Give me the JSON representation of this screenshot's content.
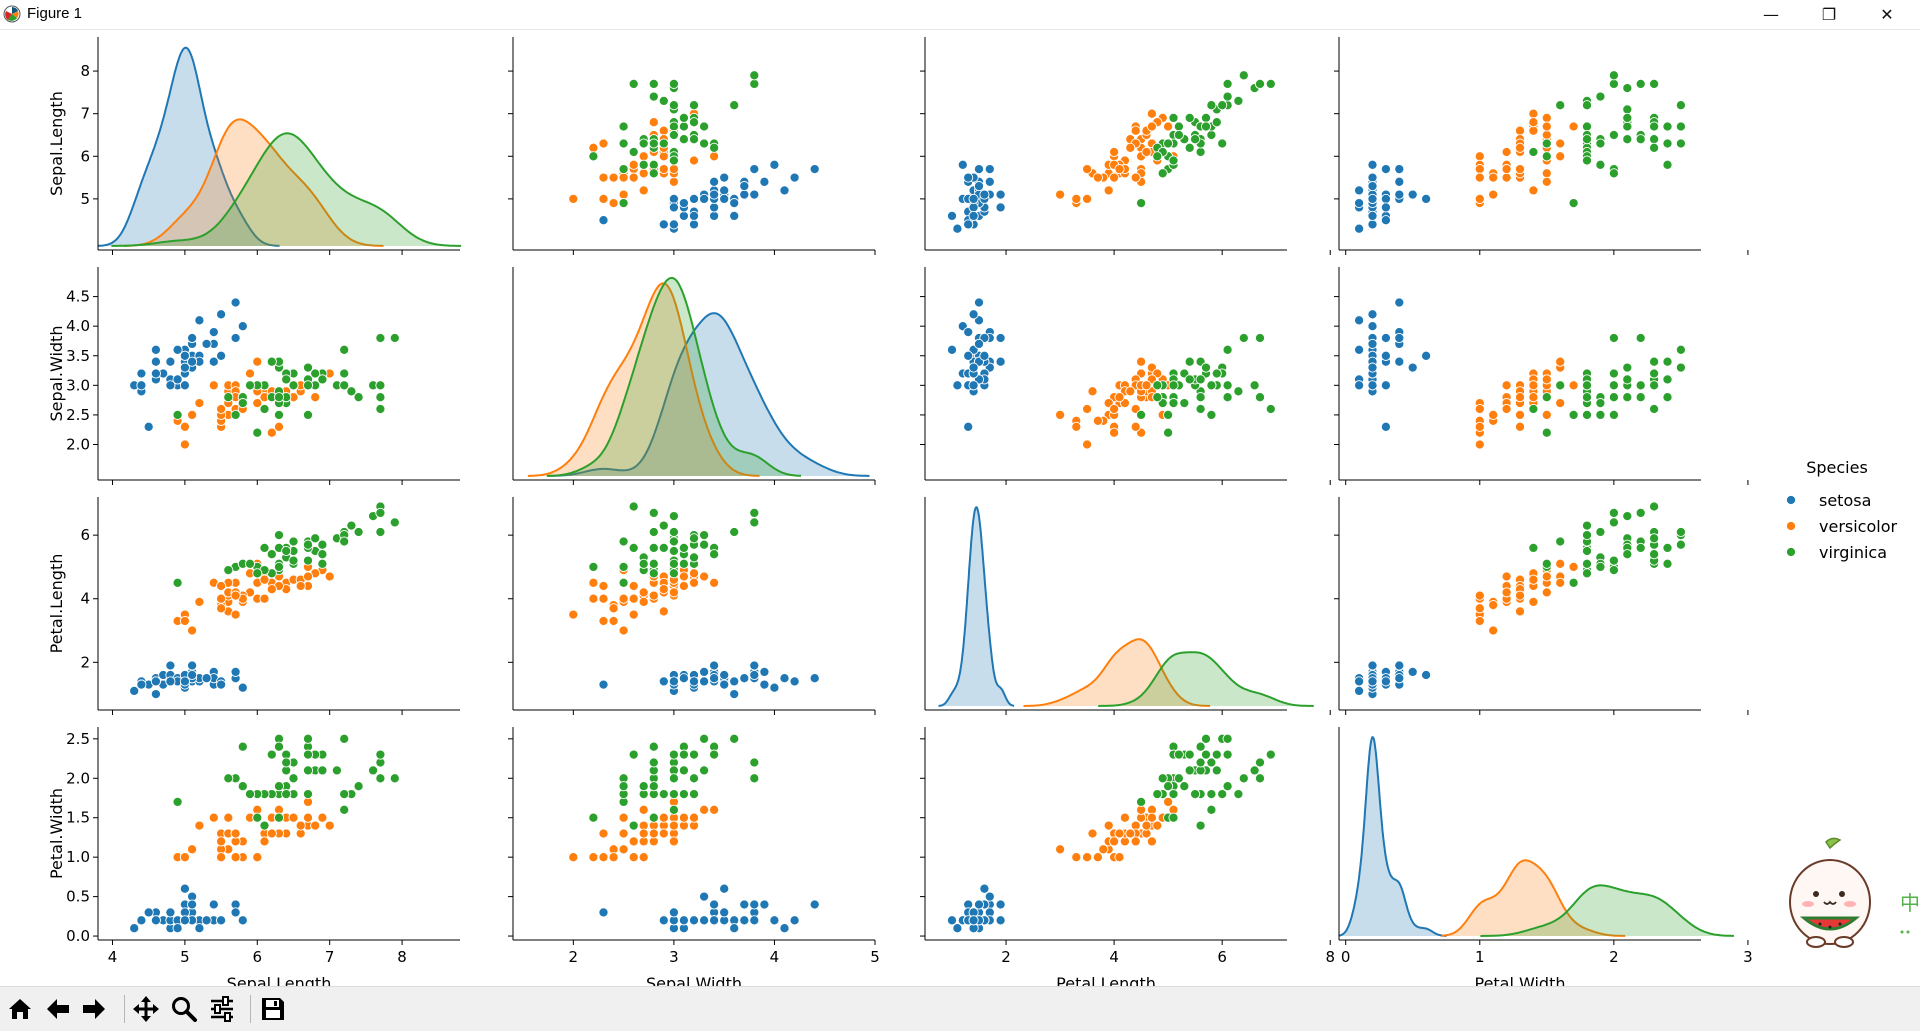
{
  "window": {
    "title": "Figure 1",
    "minimize_label": "—",
    "restore_label": "❐",
    "close_label": "✕"
  },
  "toolbar": {
    "buttons": [
      {
        "name": "home-button",
        "icon": "home-icon"
      },
      {
        "name": "back-button",
        "icon": "arrow-left-icon"
      },
      {
        "name": "forward-button",
        "icon": "arrow-right-icon"
      },
      {
        "name": "pan-button",
        "icon": "move-icon"
      },
      {
        "name": "zoom-button",
        "icon": "magnifier-icon"
      },
      {
        "name": "configure-subplots-button",
        "icon": "sliders-icon"
      },
      {
        "name": "save-button",
        "icon": "floppy-disk-icon"
      }
    ]
  },
  "overlay": {
    "edge_glyph": "中",
    "edge_glyph_color": "#55b24a"
  },
  "chart_data": {
    "type": "scatter",
    "title": "",
    "kind": "pairplot",
    "variables": [
      "Sepal.Length",
      "Sepal.Width",
      "Petal.Length",
      "Petal.Width"
    ],
    "axis_ranges": {
      "Sepal.Length": [
        3.8,
        8.8
      ],
      "Sepal.Width": [
        1.4,
        5.0
      ],
      "Petal.Length": [
        0.5,
        7.2
      ],
      "Petal.Width": [
        -0.05,
        2.65
      ]
    },
    "ticks": {
      "Sepal.Length": [
        "5",
        "6",
        "7",
        "8"
      ],
      "Sepal.Width": [
        "2.0",
        "2.5",
        "3.0",
        "3.5",
        "4.0",
        "4.5"
      ],
      "Petal.Length": [
        "2",
        "4",
        "6"
      ],
      "Petal.Width": [
        "0.0",
        "0.5",
        "1.0",
        "1.5",
        "2.0",
        "2.5"
      ]
    },
    "xticks_bottom": {
      "Sepal.Length": [
        "4",
        "5",
        "6",
        "7",
        "8"
      ],
      "Sepal.Width": [
        "2",
        "3",
        "4",
        "5"
      ],
      "Petal.Length": [
        "2",
        "4",
        "6",
        "8"
      ],
      "Petal.Width": [
        "0",
        "1",
        "2",
        "3"
      ]
    },
    "legend": {
      "title": "Species",
      "position": "right",
      "entries": [
        "setosa",
        "versicolor",
        "virginica"
      ]
    },
    "series": [
      {
        "name": "setosa",
        "color": "#1f77b4",
        "centers": [
          5.0,
          3.4,
          1.46,
          0.25
        ],
        "spread": [
          0.35,
          0.38,
          0.17,
          0.1
        ],
        "points": [
          [
            5.1,
            3.5,
            1.4,
            0.2
          ],
          [
            4.9,
            3.0,
            1.4,
            0.2
          ],
          [
            4.7,
            3.2,
            1.3,
            0.2
          ],
          [
            4.6,
            3.1,
            1.5,
            0.2
          ],
          [
            5.0,
            3.6,
            1.4,
            0.2
          ],
          [
            5.4,
            3.9,
            1.7,
            0.4
          ],
          [
            4.6,
            3.4,
            1.4,
            0.3
          ],
          [
            5.0,
            3.4,
            1.5,
            0.2
          ],
          [
            4.4,
            2.9,
            1.4,
            0.2
          ],
          [
            4.9,
            3.1,
            1.5,
            0.1
          ],
          [
            5.4,
            3.7,
            1.5,
            0.2
          ],
          [
            4.8,
            3.4,
            1.6,
            0.2
          ],
          [
            4.8,
            3.0,
            1.4,
            0.1
          ],
          [
            4.3,
            3.0,
            1.1,
            0.1
          ],
          [
            5.8,
            4.0,
            1.2,
            0.2
          ],
          [
            5.7,
            4.4,
            1.5,
            0.4
          ],
          [
            5.4,
            3.9,
            1.3,
            0.4
          ],
          [
            5.1,
            3.5,
            1.4,
            0.3
          ],
          [
            5.7,
            3.8,
            1.7,
            0.3
          ],
          [
            5.1,
            3.8,
            1.5,
            0.3
          ],
          [
            5.4,
            3.4,
            1.7,
            0.2
          ],
          [
            5.1,
            3.7,
            1.5,
            0.4
          ],
          [
            4.6,
            3.6,
            1.0,
            0.2
          ],
          [
            5.1,
            3.3,
            1.7,
            0.5
          ],
          [
            4.8,
            3.4,
            1.9,
            0.2
          ],
          [
            5.0,
            3.0,
            1.6,
            0.2
          ],
          [
            5.0,
            3.4,
            1.6,
            0.4
          ],
          [
            5.2,
            3.5,
            1.5,
            0.2
          ],
          [
            5.2,
            3.4,
            1.4,
            0.2
          ],
          [
            4.7,
            3.2,
            1.6,
            0.2
          ],
          [
            4.8,
            3.1,
            1.6,
            0.2
          ],
          [
            5.4,
            3.4,
            1.5,
            0.4
          ],
          [
            5.2,
            4.1,
            1.5,
            0.1
          ],
          [
            5.5,
            4.2,
            1.4,
            0.2
          ],
          [
            4.9,
            3.1,
            1.5,
            0.2
          ],
          [
            5.0,
            3.2,
            1.2,
            0.2
          ],
          [
            5.5,
            3.5,
            1.3,
            0.2
          ],
          [
            4.9,
            3.6,
            1.4,
            0.1
          ],
          [
            4.4,
            3.0,
            1.3,
            0.2
          ],
          [
            5.1,
            3.4,
            1.5,
            0.2
          ],
          [
            5.0,
            3.5,
            1.3,
            0.3
          ],
          [
            4.5,
            2.3,
            1.3,
            0.3
          ],
          [
            4.4,
            3.2,
            1.3,
            0.2
          ],
          [
            5.0,
            3.5,
            1.6,
            0.6
          ],
          [
            5.1,
            3.8,
            1.9,
            0.4
          ],
          [
            4.8,
            3.0,
            1.4,
            0.3
          ],
          [
            5.1,
            3.8,
            1.6,
            0.2
          ],
          [
            4.6,
            3.2,
            1.4,
            0.2
          ],
          [
            5.3,
            3.7,
            1.5,
            0.2
          ],
          [
            5.0,
            3.3,
            1.4,
            0.2
          ]
        ]
      },
      {
        "name": "versicolor",
        "color": "#ff7f0e",
        "centers": [
          5.94,
          2.77,
          4.26,
          1.33
        ],
        "spread": [
          0.5,
          0.31,
          0.47,
          0.2
        ],
        "points": [
          [
            7.0,
            3.2,
            4.7,
            1.4
          ],
          [
            6.4,
            3.2,
            4.5,
            1.5
          ],
          [
            6.9,
            3.1,
            4.9,
            1.5
          ],
          [
            5.5,
            2.3,
            4.0,
            1.3
          ],
          [
            6.5,
            2.8,
            4.6,
            1.5
          ],
          [
            5.7,
            2.8,
            4.5,
            1.3
          ],
          [
            6.3,
            3.3,
            4.7,
            1.6
          ],
          [
            4.9,
            2.4,
            3.3,
            1.0
          ],
          [
            6.6,
            2.9,
            4.6,
            1.3
          ],
          [
            5.2,
            2.7,
            3.9,
            1.4
          ],
          [
            5.0,
            2.0,
            3.5,
            1.0
          ],
          [
            5.9,
            3.0,
            4.2,
            1.5
          ],
          [
            6.0,
            2.2,
            4.0,
            1.0
          ],
          [
            6.1,
            2.9,
            4.7,
            1.4
          ],
          [
            5.6,
            2.9,
            3.6,
            1.3
          ],
          [
            6.7,
            3.1,
            4.4,
            1.4
          ],
          [
            5.6,
            3.0,
            4.5,
            1.5
          ],
          [
            5.8,
            2.7,
            4.1,
            1.0
          ],
          [
            6.2,
            2.2,
            4.5,
            1.5
          ],
          [
            5.6,
            2.5,
            3.9,
            1.1
          ],
          [
            5.9,
            3.2,
            4.8,
            1.8
          ],
          [
            6.1,
            2.8,
            4.0,
            1.3
          ],
          [
            6.3,
            2.5,
            4.9,
            1.5
          ],
          [
            6.1,
            2.8,
            4.7,
            1.2
          ],
          [
            6.4,
            2.9,
            4.3,
            1.3
          ],
          [
            6.6,
            3.0,
            4.4,
            1.4
          ],
          [
            6.8,
            2.8,
            4.8,
            1.4
          ],
          [
            6.7,
            3.0,
            5.0,
            1.7
          ],
          [
            6.0,
            2.9,
            4.5,
            1.5
          ],
          [
            5.7,
            2.6,
            3.5,
            1.0
          ],
          [
            5.5,
            2.4,
            3.8,
            1.1
          ],
          [
            5.5,
            2.4,
            3.7,
            1.0
          ],
          [
            5.8,
            2.7,
            3.9,
            1.2
          ],
          [
            6.0,
            2.7,
            5.1,
            1.6
          ],
          [
            5.4,
            3.0,
            4.5,
            1.5
          ],
          [
            6.0,
            3.4,
            4.5,
            1.6
          ],
          [
            6.7,
            3.1,
            4.7,
            1.5
          ],
          [
            6.3,
            2.3,
            4.4,
            1.3
          ],
          [
            5.6,
            3.0,
            4.1,
            1.3
          ],
          [
            5.5,
            2.5,
            4.0,
            1.3
          ],
          [
            5.5,
            2.6,
            4.4,
            1.2
          ],
          [
            6.1,
            3.0,
            4.6,
            1.4
          ],
          [
            5.8,
            2.6,
            4.0,
            1.2
          ],
          [
            5.0,
            2.3,
            3.3,
            1.0
          ],
          [
            5.6,
            2.7,
            4.2,
            1.3
          ],
          [
            5.7,
            3.0,
            4.2,
            1.2
          ],
          [
            5.7,
            2.9,
            4.2,
            1.3
          ],
          [
            6.2,
            2.9,
            4.3,
            1.3
          ],
          [
            5.1,
            2.5,
            3.0,
            1.1
          ],
          [
            5.7,
            2.8,
            4.1,
            1.3
          ]
        ]
      },
      {
        "name": "virginica",
        "color": "#2ca02c",
        "centers": [
          6.59,
          2.97,
          5.55,
          2.03
        ],
        "spread": [
          0.63,
          0.32,
          0.55,
          0.27
        ],
        "points": [
          [
            6.3,
            3.3,
            6.0,
            2.5
          ],
          [
            5.8,
            2.7,
            5.1,
            1.9
          ],
          [
            7.1,
            3.0,
            5.9,
            2.1
          ],
          [
            6.3,
            2.9,
            5.6,
            1.8
          ],
          [
            6.5,
            3.0,
            5.8,
            2.2
          ],
          [
            7.6,
            3.0,
            6.6,
            2.1
          ],
          [
            4.9,
            2.5,
            4.5,
            1.7
          ],
          [
            7.3,
            2.9,
            6.3,
            1.8
          ],
          [
            6.7,
            2.5,
            5.8,
            1.8
          ],
          [
            7.2,
            3.6,
            6.1,
            2.5
          ],
          [
            6.5,
            3.2,
            5.1,
            2.0
          ],
          [
            6.4,
            2.7,
            5.3,
            1.9
          ],
          [
            6.8,
            3.0,
            5.5,
            2.1
          ],
          [
            5.7,
            2.5,
            5.0,
            2.0
          ],
          [
            5.8,
            2.8,
            5.1,
            2.4
          ],
          [
            6.4,
            3.2,
            5.3,
            2.3
          ],
          [
            6.5,
            3.0,
            5.5,
            1.8
          ],
          [
            7.7,
            3.8,
            6.7,
            2.2
          ],
          [
            7.7,
            2.6,
            6.9,
            2.3
          ],
          [
            6.0,
            2.2,
            5.0,
            1.5
          ],
          [
            6.9,
            3.2,
            5.7,
            2.3
          ],
          [
            5.6,
            2.8,
            4.9,
            2.0
          ],
          [
            7.7,
            2.8,
            6.7,
            2.0
          ],
          [
            6.3,
            2.7,
            4.9,
            1.8
          ],
          [
            6.7,
            3.3,
            5.7,
            2.1
          ],
          [
            7.2,
            3.2,
            6.0,
            1.8
          ],
          [
            6.2,
            2.8,
            4.8,
            1.8
          ],
          [
            6.1,
            3.0,
            4.9,
            1.8
          ],
          [
            6.4,
            2.8,
            5.6,
            2.1
          ],
          [
            7.2,
            3.0,
            5.8,
            1.6
          ],
          [
            7.4,
            2.8,
            6.1,
            1.9
          ],
          [
            7.9,
            3.8,
            6.4,
            2.0
          ],
          [
            6.4,
            2.8,
            5.6,
            2.2
          ],
          [
            6.3,
            2.8,
            5.1,
            1.5
          ],
          [
            6.1,
            2.6,
            5.6,
            1.4
          ],
          [
            7.7,
            3.0,
            6.1,
            2.3
          ],
          [
            6.3,
            3.4,
            5.6,
            2.4
          ],
          [
            6.4,
            3.1,
            5.5,
            1.8
          ],
          [
            6.0,
            3.0,
            4.8,
            1.8
          ],
          [
            6.9,
            3.1,
            5.4,
            2.1
          ],
          [
            6.7,
            3.1,
            5.6,
            2.4
          ],
          [
            6.9,
            3.1,
            5.1,
            2.3
          ],
          [
            5.8,
            2.7,
            5.1,
            1.9
          ],
          [
            6.8,
            3.2,
            5.9,
            2.3
          ],
          [
            6.7,
            3.3,
            5.7,
            2.5
          ],
          [
            6.7,
            3.0,
            5.2,
            2.3
          ],
          [
            6.3,
            2.5,
            5.0,
            1.9
          ],
          [
            6.5,
            3.0,
            5.2,
            2.0
          ],
          [
            6.2,
            3.4,
            5.4,
            2.3
          ],
          [
            5.9,
            3.0,
            5.1,
            1.8
          ]
        ]
      }
    ]
  }
}
